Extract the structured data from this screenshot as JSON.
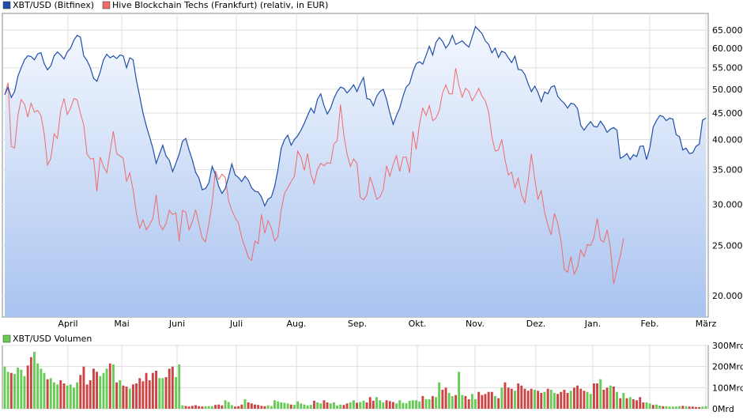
{
  "colors": {
    "xbt_line": "#1f4fa8",
    "hive_line": "#f06a6a",
    "volume_up": "#66cc55",
    "volume_down": "#cc4444",
    "area_top": "#f4f8ff",
    "area_bottom": "#a9c3ef",
    "grid": "#dddddd"
  },
  "chart_data": [
    {
      "type": "line",
      "title": "",
      "series": [
        {
          "name": "XBT/USD (Bitfinex)",
          "color": "#1f4fa8",
          "values": [
            48800,
            50500,
            48200,
            49500,
            53000,
            55000,
            57000,
            58000,
            57800,
            57000,
            58500,
            58800,
            56000,
            54500,
            55500,
            58000,
            59000,
            58200,
            57200,
            59000,
            60000,
            62200,
            63500,
            63000,
            58000,
            56800,
            55000,
            52500,
            51800,
            54000,
            57000,
            58400,
            57500,
            58000,
            57300,
            58200,
            58000,
            55000,
            57500,
            57000,
            52000,
            48500,
            45000,
            42500,
            40500,
            38500,
            36000,
            37500,
            39000,
            37200,
            36500,
            34700,
            36000,
            37500,
            39700,
            40200,
            38200,
            36500,
            34600,
            33700,
            32000,
            32200,
            33000,
            35500,
            34300,
            32500,
            31500,
            32200,
            33900,
            35900,
            34200,
            33800,
            33200,
            34000,
            33400,
            32300,
            31800,
            31700,
            31000,
            29800,
            30700,
            31000,
            32500,
            35000,
            38500,
            40000,
            40800,
            39000,
            40000,
            40700,
            41700,
            43000,
            44500,
            46000,
            45000,
            47800,
            49000,
            46500,
            44800,
            46000,
            48000,
            49500,
            50500,
            50200,
            49200,
            50000,
            51000,
            49500,
            51200,
            52700,
            48000,
            47800,
            46500,
            48500,
            49500,
            50000,
            47800,
            45000,
            42800,
            44500,
            46000,
            48500,
            50500,
            51300,
            54000,
            56000,
            56500,
            55900,
            58100,
            60500,
            58200,
            61500,
            62900,
            61900,
            60000,
            61200,
            63500,
            61000,
            61500,
            62000,
            61000,
            60300,
            63000,
            66000,
            65000,
            64000,
            62000,
            61000,
            58800,
            60000,
            57600,
            59200,
            58800,
            57500,
            56300,
            57900,
            54600,
            54500,
            53400,
            51300,
            49500,
            50700,
            49300,
            47300,
            49400,
            49000,
            50500,
            50800,
            48500,
            47600,
            47000,
            46000,
            47000,
            46800,
            45900,
            42600,
            41700,
            42600,
            43300,
            42400,
            42300,
            43400,
            42500,
            41300,
            41900,
            42200,
            41700,
            36800,
            37100,
            37600,
            36600,
            37400,
            37100,
            38800,
            38900,
            36600,
            38600,
            42300,
            43500,
            44500,
            44300,
            43500,
            44000,
            43800,
            40900,
            40500,
            38200,
            38500,
            37600,
            37700,
            38800,
            39200,
            43600,
            44000
          ]
        },
        {
          "name": "Hive Blockchain Techs (Frankfurt) (relativ, in EUR)",
          "color": "#f06a6a",
          "values": [
            48800,
            51500,
            38800,
            38500,
            44600,
            47800,
            46800,
            44200,
            47000,
            45200,
            45500,
            44500,
            41000,
            35700,
            36800,
            41000,
            40200,
            45500,
            48000,
            44700,
            46000,
            48000,
            47700,
            44900,
            42700,
            37500,
            36700,
            36800,
            31800,
            37000,
            35500,
            34500,
            37900,
            41500,
            37600,
            37200,
            36800,
            33200,
            34500,
            32000,
            28800,
            27000,
            28000,
            26800,
            27400,
            28200,
            31300,
            27500,
            26800,
            27600,
            29200,
            28700,
            28900,
            25500,
            29200,
            29000,
            26800,
            27800,
            29300,
            27500,
            25800,
            25400,
            27500,
            30200,
            34800,
            33500,
            34300,
            33800,
            30500,
            29200,
            28300,
            27600,
            25900,
            24800,
            23700,
            23400,
            25500,
            25200,
            28700,
            26400,
            27900,
            27000,
            25500,
            26000,
            29300,
            31500,
            32300,
            33200,
            34000,
            38000,
            37000,
            34900,
            37600,
            34300,
            32900,
            35000,
            36000,
            35600,
            36100,
            36000,
            39200,
            39800,
            46700,
            40900,
            37500,
            35500,
            36700,
            36000,
            31000,
            30600,
            31300,
            33900,
            32400,
            30700,
            31000,
            32100,
            35600,
            34000,
            35800,
            37200,
            34700,
            37000,
            37000,
            34500,
            41500,
            38300,
            42800,
            46000,
            44500,
            46500,
            43500,
            44000,
            45500,
            49200,
            51000,
            49000,
            49000,
            54900,
            50800,
            48300,
            50200,
            49500,
            47500,
            48700,
            50200,
            48500,
            47500,
            45200,
            40500,
            38000,
            38200,
            40000,
            36500,
            34200,
            34600,
            32300,
            33700,
            31300,
            30200,
            33200,
            37500,
            33600,
            30700,
            31900,
            29000,
            27400,
            26200,
            28800,
            27600,
            25500,
            22500,
            22200,
            23800,
            22000,
            22700,
            24500,
            23800,
            25100,
            25000,
            25900,
            28200,
            25600,
            25400,
            26800,
            24800,
            21100,
            22500,
            23800,
            25800
          ]
        }
      ],
      "y_scale": "log",
      "y_ticks": [
        "20.000",
        "25.000",
        "30.000",
        "35.000",
        "40.000",
        "45.000",
        "50.000",
        "55.000",
        "60.000",
        "65.000"
      ],
      "x_ticks": [
        "April",
        "Mai",
        "Juni",
        "Juli",
        "Aug.",
        "Sep.",
        "Okt.",
        "Nov.",
        "Dez.",
        "Jan.",
        "Feb.",
        "März"
      ],
      "legend": "top-left",
      "grid": true
    },
    {
      "type": "bar",
      "title": "",
      "series": [
        {
          "name": "XBT/USD Volumen",
          "unit": "Mrd",
          "values": [
            200,
            175,
            170,
            165,
            195,
            185,
            155,
            205,
            245,
            270,
            215,
            190,
            170,
            140,
            145,
            125,
            115,
            135,
            120,
            110,
            115,
            100,
            125,
            160,
            200,
            115,
            135,
            190,
            175,
            155,
            170,
            190,
            215,
            210,
            125,
            135,
            110,
            105,
            95,
            115,
            120,
            145,
            130,
            170,
            135,
            170,
            180,
            145,
            145,
            150,
            190,
            200,
            150,
            210,
            16,
            13,
            11,
            14,
            17,
            12,
            11,
            12,
            12,
            12,
            18,
            20,
            16,
            40,
            32,
            17,
            10,
            12,
            20,
            45,
            30,
            25,
            20,
            18,
            14,
            12,
            16,
            12,
            40,
            35,
            30,
            28,
            25,
            20,
            18,
            35,
            25,
            20,
            15,
            18,
            38,
            30,
            25,
            40,
            30,
            25,
            30,
            15,
            20,
            18,
            25,
            30,
            40,
            28,
            32,
            38,
            30,
            55,
            38,
            55,
            40,
            30,
            40,
            36,
            32,
            25,
            40,
            28,
            26,
            38,
            40,
            40,
            35,
            60,
            45,
            45,
            60,
            55,
            125,
            90,
            100,
            75,
            60,
            65,
            175,
            65,
            60,
            45,
            70,
            45,
            80,
            65,
            70,
            80,
            80,
            60,
            50,
            100,
            125,
            100,
            95,
            85,
            120,
            110,
            95,
            85,
            95,
            90,
            85,
            75,
            80,
            95,
            90,
            75,
            70,
            80,
            90,
            75,
            85,
            100,
            110,
            95,
            85,
            80,
            70,
            120,
            120,
            140,
            90,
            100,
            110,
            105,
            80,
            50,
            75,
            50,
            55,
            45,
            40,
            55,
            30,
            30,
            25,
            18,
            20,
            15,
            12,
            12,
            10,
            10,
            10,
            12,
            14,
            12,
            10,
            10,
            8,
            8,
            10,
            12
          ],
          "up": [
            true,
            true,
            false,
            true,
            true,
            true,
            true,
            false,
            false,
            true,
            true,
            true,
            true,
            false,
            true,
            true,
            true,
            false,
            false,
            true,
            true,
            true,
            true,
            false,
            false,
            false,
            false,
            false,
            false,
            true,
            true,
            true,
            false,
            true,
            false,
            true,
            false,
            false,
            true,
            false,
            false,
            false,
            false,
            false,
            false,
            false,
            false,
            true,
            true,
            false,
            false,
            false,
            true,
            true,
            true,
            false,
            false,
            false,
            false,
            false,
            false,
            true,
            true,
            true,
            false,
            false,
            false,
            true,
            true,
            true,
            false,
            false,
            false,
            true,
            false,
            false,
            false,
            false,
            false,
            false,
            true,
            true,
            true,
            true,
            true,
            true,
            true,
            false,
            true,
            true,
            true,
            true,
            true,
            true,
            false,
            true,
            true,
            false,
            false,
            true,
            true,
            true,
            true,
            false,
            false,
            true,
            true,
            false,
            true,
            true,
            false,
            false,
            false,
            true,
            true,
            true,
            false,
            false,
            false,
            true,
            true,
            true,
            true,
            true,
            true,
            true,
            true,
            false,
            true,
            true,
            false,
            true,
            true,
            false,
            false,
            true,
            true,
            false,
            true,
            true,
            false,
            false,
            true,
            true,
            false,
            false,
            false,
            false,
            false,
            true,
            false,
            true,
            false,
            false,
            false,
            true,
            false,
            false,
            false,
            false,
            false,
            true,
            false,
            false,
            true,
            false,
            true,
            true,
            false,
            false,
            false,
            false,
            true,
            false,
            false,
            false,
            false,
            true,
            true,
            false,
            false,
            true,
            false,
            false,
            true,
            false,
            true,
            false,
            true,
            false,
            true,
            false,
            false,
            false,
            false,
            true,
            true,
            false,
            true,
            true,
            false,
            true,
            true,
            true,
            true,
            true,
            false,
            true,
            false,
            false,
            false,
            false,
            true,
            true,
            false,
            true
          ]
        }
      ],
      "y_ticks": [
        "0Mrd",
        "100Mrd",
        "200Mrd",
        "300Mrd"
      ],
      "ylim": [
        0,
        300
      ],
      "legend": "top-left",
      "grid": true
    }
  ]
}
